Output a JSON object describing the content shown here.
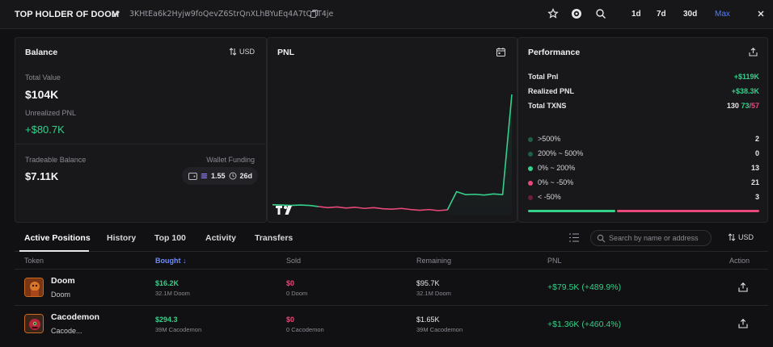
{
  "header": {
    "title": "TOP HOLDER OF DOOM",
    "address": "3KHtEa6k2Hyjw9foQevZ6StrQnXLhBYuEq4A7tQET4je",
    "ranges": [
      "1d",
      "7d",
      "30d",
      "Max"
    ],
    "active_range": "Max"
  },
  "balance": {
    "title": "Balance",
    "currency": "USD",
    "total_value_label": "Total Value",
    "total_value": "$104K",
    "unrealized_label": "Unrealized PNL",
    "unrealized_value": "+$80.7K",
    "tradeable_label": "Tradeable Balance",
    "tradeable_value": "$7.11K",
    "wallet_funding_label": "Wallet Funding",
    "funding_amount": "1.55",
    "funding_age": "26d"
  },
  "pnl": {
    "title": "PNL"
  },
  "chart_data": {
    "type": "line",
    "title": "PNL",
    "xlabel": "",
    "ylabel": "",
    "grid": false,
    "series": [
      {
        "color_negative": "#e8497a",
        "color_positive": "#35d08a",
        "x": [
          0,
          1,
          2,
          3,
          4,
          5,
          6,
          7,
          8,
          9,
          10,
          11,
          12,
          13,
          14,
          15,
          16,
          17,
          18,
          19,
          20,
          21,
          22,
          23,
          24,
          25,
          26
        ],
        "values": [
          0.3,
          0.2,
          0.1,
          0.2,
          0.1,
          -0.2,
          -0.5,
          -0.3,
          -0.6,
          -0.4,
          -0.7,
          -0.5,
          -0.8,
          -0.9,
          -0.7,
          -1.0,
          -1.2,
          -1.0,
          -1.3,
          -1.1,
          3.8,
          3.0,
          3.1,
          2.9,
          3.2,
          3.0,
          30.0
        ],
        "sign_change_index": 5,
        "recovery_index": 19
      }
    ]
  },
  "performance": {
    "title": "Performance",
    "total_pnl_label": "Total Pnl",
    "total_pnl": "+$119K",
    "realized_label": "Realized PNL",
    "realized": "+$38.3K",
    "txns_label": "Total TXNS",
    "txns_total": "130",
    "txns_buy": "73",
    "txns_sell": "57",
    "distribution": [
      {
        "label": ">500%",
        "count": "2",
        "color": "#1f5f43"
      },
      {
        "label": "200% ~ 500%",
        "count": "0",
        "color": "#1f5f43"
      },
      {
        "label": "0% ~ 200%",
        "count": "13",
        "color": "#35d08a"
      },
      {
        "label": "0% ~ -50%",
        "count": "21",
        "color": "#e8497a"
      },
      {
        "label": "< -50%",
        "count": "3",
        "color": "#6b1f38"
      }
    ],
    "win_fraction": 0.38
  },
  "tabs": [
    "Active Positions",
    "History",
    "Top 100",
    "Activity",
    "Transfers"
  ],
  "search_placeholder": "Search by name or address",
  "table_currency": "USD",
  "columns": {
    "token": "Token",
    "bought": "Bought ↓",
    "sold": "Sold",
    "remaining": "Remaining",
    "pnl": "PNL",
    "action": "Action"
  },
  "rows": [
    {
      "name": "Doom",
      "symbol": "Doom",
      "bought": "$16.2K",
      "bought_sub": "32.1M Doom",
      "sold": "$0",
      "sold_sub": "0 Doom",
      "remaining": "$95.7K",
      "remaining_sub": "32.1M Doom",
      "pnl": "+$79.5K (+489.9%)"
    },
    {
      "name": "Cacodemon",
      "symbol": "Cacode...",
      "bought": "$294.3",
      "bought_sub": "39M Cacodemon",
      "sold": "$0",
      "sold_sub": "0 Cacodemon",
      "remaining": "$1.65K",
      "remaining_sub": "39M Cacodemon",
      "pnl": "+$1.36K (+460.4%)"
    }
  ]
}
